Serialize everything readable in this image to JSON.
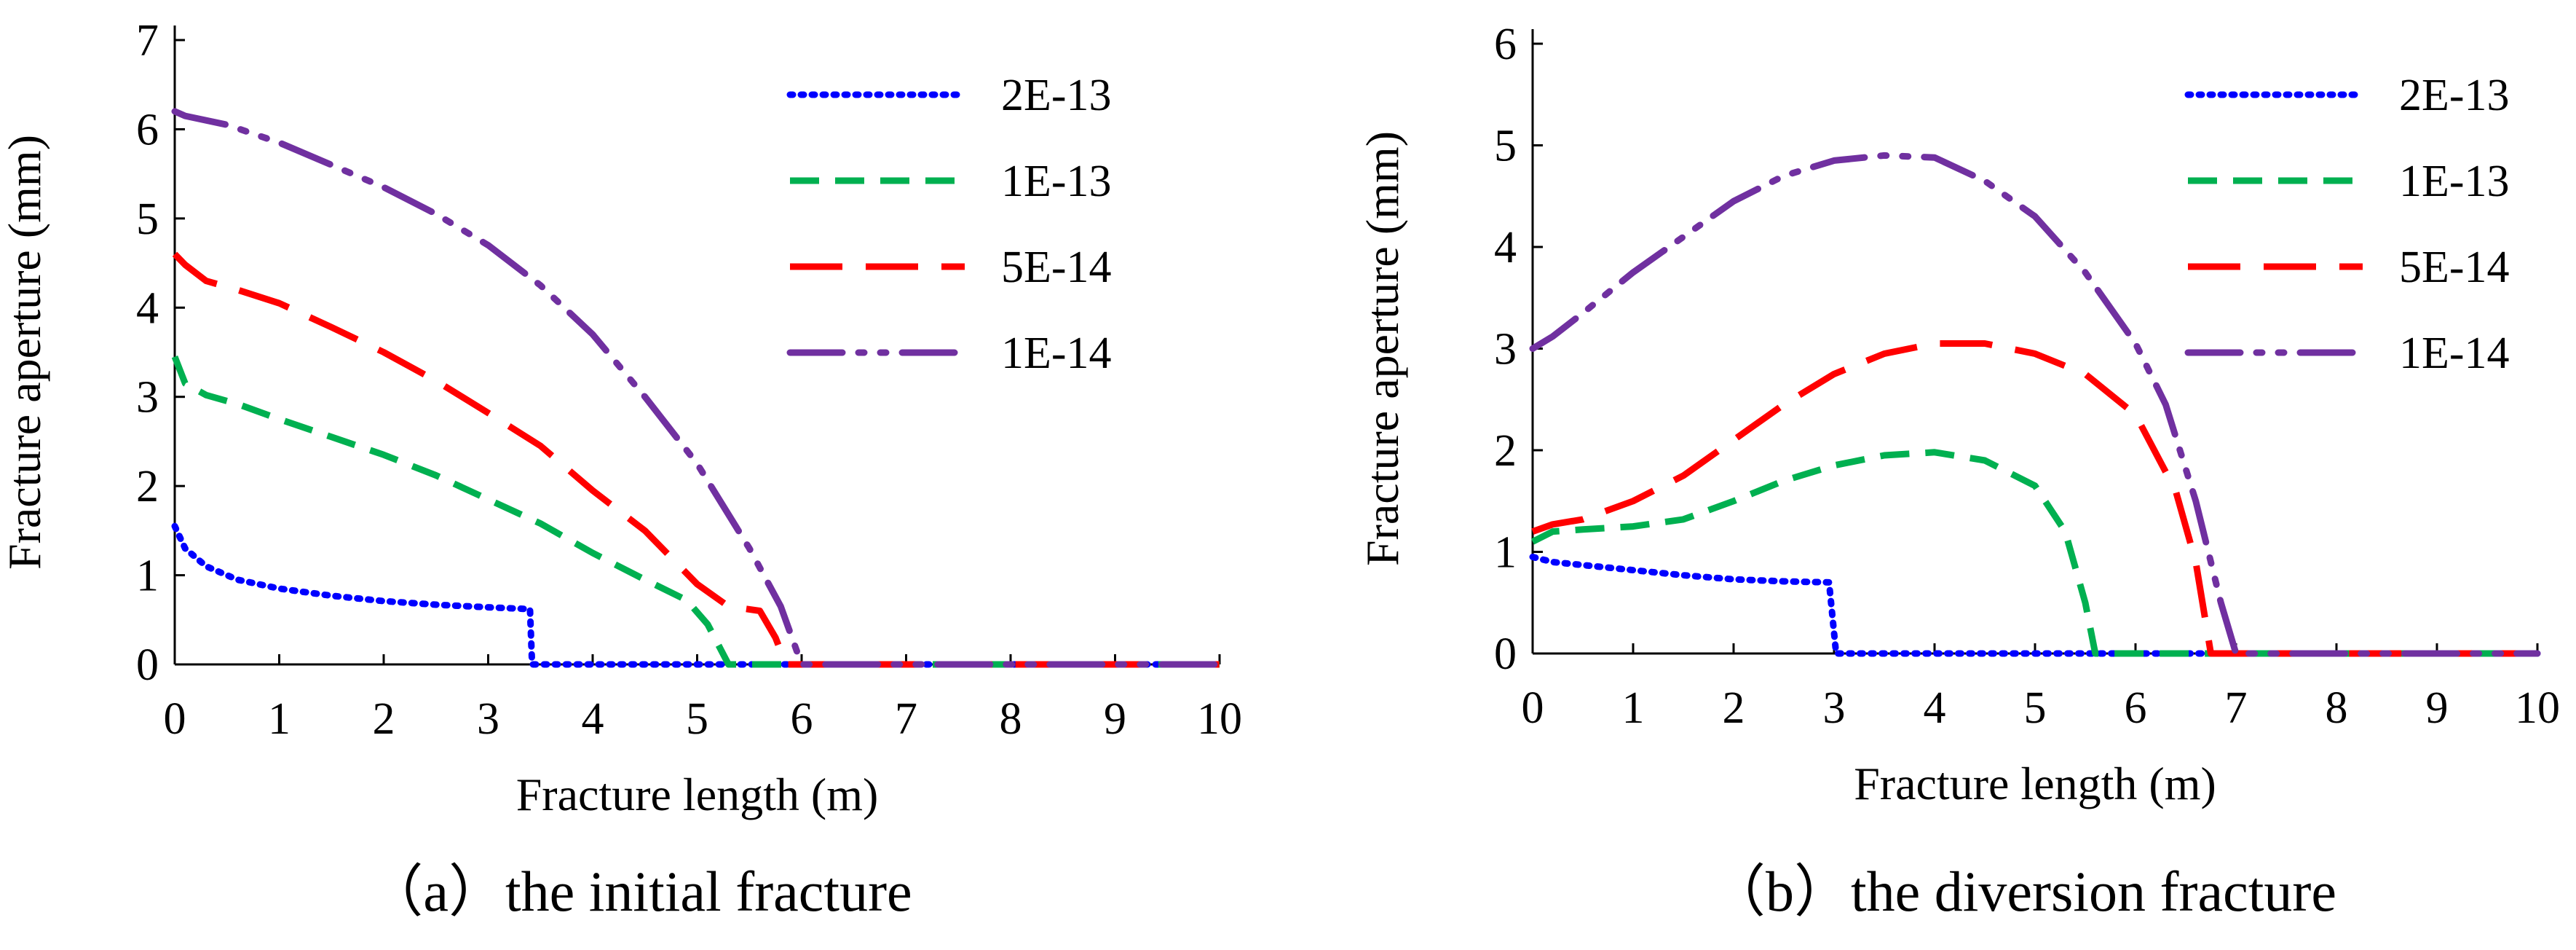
{
  "chart_data": [
    {
      "type": "line",
      "caption": "（a）the initial fracture",
      "xlabel": "Fracture length (m)",
      "ylabel": "Fracture aperture (mm)",
      "xlim": [
        0,
        10
      ],
      "ylim": [
        0,
        7
      ],
      "xticks": [
        "0",
        "1",
        "2",
        "3",
        "4",
        "5",
        "6",
        "7",
        "8",
        "9",
        "10"
      ],
      "yticks": [
        "0",
        "1",
        "2",
        "3",
        "4",
        "5",
        "6",
        "7"
      ],
      "grid": false,
      "legend_position": "top-right",
      "series": [
        {
          "name": "2E-13",
          "color": "#0000ff",
          "dash": "dotted",
          "points": [
            [
              0,
              1.55
            ],
            [
              0.1,
              1.3
            ],
            [
              0.3,
              1.1
            ],
            [
              0.6,
              0.95
            ],
            [
              1,
              0.85
            ],
            [
              1.5,
              0.77
            ],
            [
              2,
              0.71
            ],
            [
              2.5,
              0.67
            ],
            [
              3,
              0.64
            ],
            [
              3.4,
              0.62
            ],
            [
              3.42,
              0.0
            ],
            [
              10,
              0.0
            ]
          ]
        },
        {
          "name": "1E-13",
          "color": "#00b050",
          "dash": "dashed",
          "points": [
            [
              0,
              3.45
            ],
            [
              0.1,
              3.15
            ],
            [
              0.3,
              3.02
            ],
            [
              0.6,
              2.92
            ],
            [
              1,
              2.75
            ],
            [
              1.5,
              2.55
            ],
            [
              2,
              2.35
            ],
            [
              2.5,
              2.12
            ],
            [
              3,
              1.85
            ],
            [
              3.5,
              1.58
            ],
            [
              4,
              1.25
            ],
            [
              4.5,
              0.95
            ],
            [
              4.9,
              0.72
            ],
            [
              5.1,
              0.45
            ],
            [
              5.3,
              0.0
            ],
            [
              10,
              0.0
            ]
          ]
        },
        {
          "name": "5E-14",
          "color": "#ff0000",
          "dash": "long-dash",
          "points": [
            [
              0,
              4.6
            ],
            [
              0.1,
              4.48
            ],
            [
              0.3,
              4.3
            ],
            [
              0.6,
              4.2
            ],
            [
              1,
              4.05
            ],
            [
              1.5,
              3.78
            ],
            [
              2,
              3.5
            ],
            [
              2.5,
              3.18
            ],
            [
              3,
              2.82
            ],
            [
              3.5,
              2.45
            ],
            [
              4,
              1.95
            ],
            [
              4.5,
              1.5
            ],
            [
              5,
              0.9
            ],
            [
              5.3,
              0.65
            ],
            [
              5.6,
              0.6
            ],
            [
              5.75,
              0.3
            ],
            [
              5.85,
              0.0
            ],
            [
              10,
              0.0
            ]
          ]
        },
        {
          "name": "1E-14",
          "color": "#7030a0",
          "dash": "dash-dot-dot",
          "points": [
            [
              0,
              6.2
            ],
            [
              0.1,
              6.15
            ],
            [
              0.5,
              6.05
            ],
            [
              1,
              5.85
            ],
            [
              1.5,
              5.6
            ],
            [
              2,
              5.35
            ],
            [
              2.5,
              5.05
            ],
            [
              3,
              4.7
            ],
            [
              3.5,
              4.25
            ],
            [
              4,
              3.7
            ],
            [
              4.5,
              3.0
            ],
            [
              5,
              2.25
            ],
            [
              5.5,
              1.3
            ],
            [
              5.8,
              0.65
            ],
            [
              6,
              0.0
            ],
            [
              10,
              0.0
            ]
          ]
        }
      ]
    },
    {
      "type": "line",
      "caption": "（b）the diversion fracture",
      "xlabel": "Fracture length (m)",
      "ylabel": "Fracture aperture (mm)",
      "xlim": [
        0,
        10
      ],
      "ylim": [
        0,
        6
      ],
      "xticks": [
        "0",
        "1",
        "2",
        "3",
        "4",
        "5",
        "6",
        "7",
        "8",
        "9",
        "10"
      ],
      "yticks": [
        "0",
        "1",
        "2",
        "3",
        "4",
        "5",
        "6"
      ],
      "grid": false,
      "legend_position": "top-right",
      "series": [
        {
          "name": "2E-13",
          "color": "#0000ff",
          "dash": "dotted",
          "points": [
            [
              0,
              0.95
            ],
            [
              0.2,
              0.9
            ],
            [
              0.5,
              0.87
            ],
            [
              1,
              0.82
            ],
            [
              1.5,
              0.77
            ],
            [
              2,
              0.73
            ],
            [
              2.5,
              0.71
            ],
            [
              2.95,
              0.7
            ],
            [
              3.02,
              0.0
            ],
            [
              10,
              0.0
            ]
          ]
        },
        {
          "name": "1E-13",
          "color": "#00b050",
          "dash": "dashed",
          "points": [
            [
              0,
              1.1
            ],
            [
              0.2,
              1.2
            ],
            [
              0.5,
              1.22
            ],
            [
              1,
              1.25
            ],
            [
              1.5,
              1.32
            ],
            [
              2,
              1.5
            ],
            [
              2.5,
              1.7
            ],
            [
              3,
              1.85
            ],
            [
              3.5,
              1.95
            ],
            [
              4,
              1.98
            ],
            [
              4.5,
              1.9
            ],
            [
              5,
              1.65
            ],
            [
              5.3,
              1.2
            ],
            [
              5.5,
              0.5
            ],
            [
              5.6,
              0.0
            ],
            [
              10,
              0.0
            ]
          ]
        },
        {
          "name": "5E-14",
          "color": "#ff0000",
          "dash": "long-dash",
          "points": [
            [
              0,
              1.2
            ],
            [
              0.2,
              1.27
            ],
            [
              0.5,
              1.32
            ],
            [
              1,
              1.5
            ],
            [
              1.5,
              1.75
            ],
            [
              2,
              2.1
            ],
            [
              2.5,
              2.45
            ],
            [
              3,
              2.75
            ],
            [
              3.5,
              2.95
            ],
            [
              4,
              3.05
            ],
            [
              4.5,
              3.05
            ],
            [
              5,
              2.95
            ],
            [
              5.5,
              2.75
            ],
            [
              6,
              2.35
            ],
            [
              6.4,
              1.6
            ],
            [
              6.6,
              0.9
            ],
            [
              6.75,
              0.0
            ],
            [
              10,
              0.0
            ]
          ]
        },
        {
          "name": "1E-14",
          "color": "#7030a0",
          "dash": "dash-dot-dot",
          "points": [
            [
              0,
              3.0
            ],
            [
              0.2,
              3.12
            ],
            [
              0.5,
              3.35
            ],
            [
              1,
              3.75
            ],
            [
              1.5,
              4.1
            ],
            [
              2,
              4.45
            ],
            [
              2.5,
              4.7
            ],
            [
              3,
              4.85
            ],
            [
              3.5,
              4.9
            ],
            [
              4,
              4.88
            ],
            [
              4.5,
              4.65
            ],
            [
              5,
              4.3
            ],
            [
              5.5,
              3.75
            ],
            [
              6,
              3.05
            ],
            [
              6.3,
              2.45
            ],
            [
              6.6,
              1.5
            ],
            [
              6.85,
              0.5
            ],
            [
              7.0,
              0.0
            ],
            [
              10,
              0.0
            ]
          ]
        }
      ]
    }
  ]
}
